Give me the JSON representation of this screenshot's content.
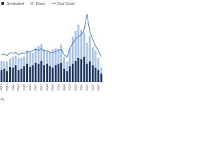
{
  "chart_data": {
    "type": "bar",
    "stacked": true,
    "categories": [
      "1Q14",
      null,
      "3Q14",
      null,
      "1Q15",
      null,
      "3Q15",
      null,
      "1Q16",
      null,
      "3Q16",
      null,
      "1Q17",
      null,
      "3Q17",
      null,
      "1Q18",
      null,
      "3Q18",
      null,
      "1Q19",
      null,
      "3Q19",
      null,
      "1Q20",
      null,
      "3Q20",
      null,
      "1Q21",
      null,
      "3Q21",
      null,
      "1Q22",
      null,
      "3Q22",
      null
    ],
    "series": [
      {
        "name": "Syndicated",
        "color": "#1f3864",
        "values": [
          20,
          22,
          18,
          25,
          24,
          28,
          20,
          22,
          26,
          30,
          25,
          28,
          32,
          30,
          35,
          28,
          30,
          26,
          24,
          28,
          30,
          32,
          22,
          18,
          26,
          30,
          35,
          40,
          38,
          42,
          30,
          34,
          28,
          24,
          20,
          14
        ]
      },
      {
        "name": "Direct",
        "color": "#a9c4e8",
        "values": [
          15,
          12,
          16,
          14,
          18,
          15,
          20,
          18,
          16,
          22,
          24,
          20,
          25,
          30,
          28,
          26,
          22,
          24,
          30,
          28,
          25,
          30,
          20,
          16,
          30,
          45,
          50,
          55,
          48,
          40,
          35,
          42,
          30,
          28,
          20,
          10
        ]
      },
      {
        "name": "Deal Count",
        "type": "line",
        "axis": "y2",
        "color": "#4a7fc1",
        "values": [
          60,
          62,
          58,
          65,
          63,
          66,
          60,
          64,
          62,
          68,
          66,
          70,
          72,
          70,
          74,
          68,
          70,
          66,
          64,
          68,
          70,
          72,
          60,
          55,
          75,
          85,
          95,
          100,
          105,
          115,
          150,
          110,
          95,
          80,
          70,
          55
        ]
      }
    ],
    "ylim": [
      0,
      120
    ],
    "y2lim": [
      0,
      160
    ],
    "source": "PL"
  }
}
